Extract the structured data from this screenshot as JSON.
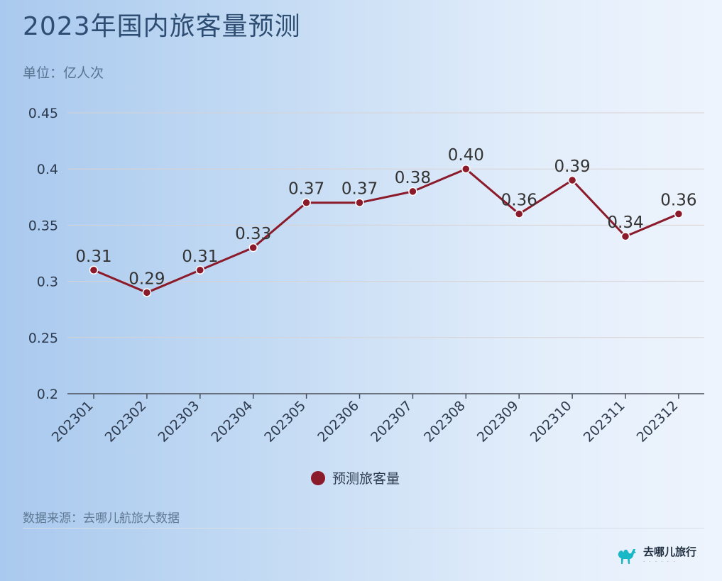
{
  "title": "2023年国内旅客量预测",
  "unit_label": "单位：亿人次",
  "source": "数据来源：去哪儿航旅大数据",
  "brand": {
    "name": "去哪儿旅行",
    "logo_icon": "camel-icon",
    "logo_color": "#19b8c6"
  },
  "colors": {
    "line": "#8b1a2b",
    "grid": "#d9d2d2",
    "label": "#2e3b4e"
  },
  "chart_data": {
    "type": "line",
    "categories": [
      "202301",
      "202302",
      "202303",
      "202304",
      "202305",
      "202306",
      "202307",
      "202308",
      "202309",
      "202310",
      "202311",
      "202312"
    ],
    "series": [
      {
        "name": "预测旅客量",
        "values": [
          0.31,
          0.29,
          0.31,
          0.33,
          0.37,
          0.37,
          0.38,
          0.4,
          0.36,
          0.39,
          0.34,
          0.36
        ],
        "labels": [
          "0.31",
          "0.29",
          "0.31",
          "0.33",
          "0.37",
          "0.37",
          "0.38",
          "0.40",
          "0.36",
          "0.39",
          "0.34",
          "0.36"
        ]
      }
    ],
    "ylim": [
      0.2,
      0.45
    ],
    "yticks": [
      0.2,
      0.25,
      0.3,
      0.35,
      0.4,
      0.45
    ],
    "ytick_labels": [
      "0.2",
      "0.25",
      "0.3",
      "0.35",
      "0.4",
      "0.45"
    ],
    "grid": true,
    "legend_position": "bottom"
  }
}
